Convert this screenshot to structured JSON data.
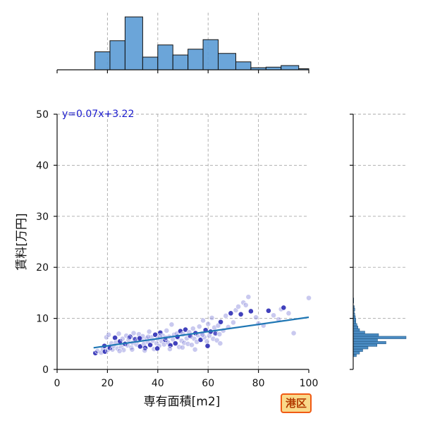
{
  "chart_data": {
    "type": "scatter",
    "xlabel": "専有面積[m2]",
    "ylabel": "賃料[万円]",
    "xlim": [
      0,
      100
    ],
    "ylim": [
      0,
      50
    ],
    "xticks": [
      0,
      20,
      40,
      60,
      80,
      100
    ],
    "yticks": [
      0,
      10,
      20,
      30,
      40,
      50
    ],
    "grid": true,
    "regression": {
      "label": "y=0.07x+3.22",
      "slope": 0.07,
      "intercept": 3.22,
      "x_range": [
        14.5,
        100
      ]
    },
    "top_histogram": {
      "bins": [
        {
          "x0": 15,
          "x1": 21,
          "height": 0.34
        },
        {
          "x0": 21,
          "x1": 27,
          "height": 0.55
        },
        {
          "x0": 27,
          "x1": 34,
          "height": 1.0
        },
        {
          "x0": 34,
          "x1": 40,
          "height": 0.24
        },
        {
          "x0": 40,
          "x1": 46,
          "height": 0.47
        },
        {
          "x0": 46,
          "x1": 52,
          "height": 0.28
        },
        {
          "x0": 52,
          "x1": 58,
          "height": 0.39
        },
        {
          "x0": 58,
          "x1": 64,
          "height": 0.57
        },
        {
          "x0": 64,
          "x1": 71,
          "height": 0.31
        },
        {
          "x0": 71,
          "x1": 77,
          "height": 0.15
        },
        {
          "x0": 77,
          "x1": 83,
          "height": 0.04
        },
        {
          "x0": 83,
          "x1": 89,
          "height": 0.05
        },
        {
          "x0": 89,
          "x1": 96,
          "height": 0.08
        },
        {
          "x0": 96,
          "x1": 100,
          "height": 0.02
        }
      ]
    },
    "right_histogram": {
      "bins": [
        {
          "y0": 2.5,
          "y1": 3.0,
          "width": 0.06
        },
        {
          "y0": 3.0,
          "y1": 3.5,
          "width": 0.12
        },
        {
          "y0": 3.5,
          "y1": 4.0,
          "width": 0.18
        },
        {
          "y0": 4.0,
          "y1": 4.5,
          "width": 0.28
        },
        {
          "y0": 4.5,
          "y1": 5.0,
          "width": 0.45
        },
        {
          "y0": 5.0,
          "y1": 5.5,
          "width": 0.62
        },
        {
          "y0": 5.5,
          "y1": 6.0,
          "width": 0.46
        },
        {
          "y0": 6.0,
          "y1": 6.5,
          "width": 1.0
        },
        {
          "y0": 6.5,
          "y1": 7.0,
          "width": 0.48
        },
        {
          "y0": 7.0,
          "y1": 7.5,
          "width": 0.22
        },
        {
          "y0": 7.5,
          "y1": 8.0,
          "width": 0.12
        },
        {
          "y0": 8.0,
          "y1": 8.5,
          "width": 0.09
        },
        {
          "y0": 8.5,
          "y1": 9.0,
          "width": 0.07
        },
        {
          "y0": 9.0,
          "y1": 9.5,
          "width": 0.05
        },
        {
          "y0": 9.5,
          "y1": 10.0,
          "width": 0.05
        },
        {
          "y0": 10.0,
          "y1": 10.5,
          "width": 0.04
        },
        {
          "y0": 10.5,
          "y1": 11.0,
          "width": 0.03
        },
        {
          "y0": 11.0,
          "y1": 11.5,
          "width": 0.02
        },
        {
          "y0": 11.5,
          "y1": 12.0,
          "width": 0.03
        },
        {
          "y0": 12.0,
          "y1": 12.5,
          "width": 0.02
        },
        {
          "y0": 13.0,
          "y1": 13.5,
          "width": 0.01
        },
        {
          "y0": 13.5,
          "y1": 14.0,
          "width": 0.01
        }
      ]
    },
    "points": [
      [
        15.2,
        3.2
      ],
      [
        16.0,
        3.6
      ],
      [
        17.5,
        3.3
      ],
      [
        18.2,
        4.0
      ],
      [
        19.0,
        3.5
      ],
      [
        19.6,
        6.3
      ],
      [
        20.1,
        3.8
      ],
      [
        20.5,
        6.8
      ],
      [
        21.0,
        4.2
      ],
      [
        21.6,
        5.1
      ],
      [
        22.0,
        3.9
      ],
      [
        22.5,
        4.6
      ],
      [
        23.0,
        6.2
      ],
      [
        23.4,
        5.3
      ],
      [
        24.0,
        4.1
      ],
      [
        24.5,
        7.0
      ],
      [
        25.0,
        5.5
      ],
      [
        25.5,
        4.4
      ],
      [
        26.0,
        6.0
      ],
      [
        26.4,
        3.8
      ],
      [
        27.0,
        5.0
      ],
      [
        27.5,
        6.6
      ],
      [
        28.0,
        4.7
      ],
      [
        28.4,
        5.8
      ],
      [
        29.0,
        6.4
      ],
      [
        29.5,
        4.3
      ],
      [
        30.0,
        5.2
      ],
      [
        30.4,
        7.1
      ],
      [
        31.0,
        6.0
      ],
      [
        31.5,
        4.9
      ],
      [
        32.0,
        5.6
      ],
      [
        32.5,
        6.9
      ],
      [
        33.0,
        4.5
      ],
      [
        33.5,
        5.9
      ],
      [
        34.0,
        6.5
      ],
      [
        34.5,
        5.0
      ],
      [
        35.0,
        4.2
      ],
      [
        35.5,
        6.1
      ],
      [
        36.0,
        5.4
      ],
      [
        36.6,
        7.4
      ],
      [
        37.0,
        4.8
      ],
      [
        37.5,
        6.3
      ],
      [
        38.0,
        5.6
      ],
      [
        38.5,
        4.0
      ],
      [
        39.0,
        6.8
      ],
      [
        39.5,
        5.1
      ],
      [
        40.0,
        6.0
      ],
      [
        40.5,
        4.6
      ],
      [
        41.0,
        7.2
      ],
      [
        41.5,
        5.5
      ],
      [
        42.0,
        6.6
      ],
      [
        42.5,
        4.9
      ],
      [
        43.0,
        5.8
      ],
      [
        43.5,
        7.6
      ],
      [
        44.0,
        5.3
      ],
      [
        44.5,
        6.4
      ],
      [
        45.0,
        4.7
      ],
      [
        45.5,
        8.8
      ],
      [
        46.0,
        5.9
      ],
      [
        46.5,
        6.8
      ],
      [
        47.0,
        5.1
      ],
      [
        47.5,
        7.0
      ],
      [
        48.0,
        6.2
      ],
      [
        48.5,
        4.4
      ],
      [
        49.0,
        7.5
      ],
      [
        49.5,
        5.6
      ],
      [
        50.0,
        6.9
      ],
      [
        50.5,
        5.2
      ],
      [
        51.0,
        7.8
      ],
      [
        51.5,
        6.1
      ],
      [
        52.0,
        5.0
      ],
      [
        52.5,
        7.3
      ],
      [
        53.0,
        6.5
      ],
      [
        53.5,
        4.8
      ],
      [
        54.0,
        8.0
      ],
      [
        54.5,
        6.0
      ],
      [
        55.0,
        7.1
      ],
      [
        55.5,
        5.4
      ],
      [
        56.0,
        6.7
      ],
      [
        56.5,
        8.4
      ],
      [
        57.0,
        5.8
      ],
      [
        57.5,
        7.0
      ],
      [
        58.0,
        9.6
      ],
      [
        58.5,
        6.3
      ],
      [
        59.0,
        7.7
      ],
      [
        59.5,
        5.5
      ],
      [
        60.0,
        8.9
      ],
      [
        60.5,
        6.6
      ],
      [
        61.0,
        7.4
      ],
      [
        61.5,
        10.1
      ],
      [
        62.0,
        6.0
      ],
      [
        62.5,
        8.2
      ],
      [
        63.0,
        7.1
      ],
      [
        63.5,
        5.7
      ],
      [
        64.0,
        8.6
      ],
      [
        64.5,
        6.9
      ],
      [
        65.0,
        9.3
      ],
      [
        66.0,
        7.6
      ],
      [
        67.0,
        10.5
      ],
      [
        68.0,
        8.3
      ],
      [
        69.0,
        11.0
      ],
      [
        70.0,
        9.2
      ],
      [
        71.0,
        11.6
      ],
      [
        72.0,
        12.3
      ],
      [
        73.0,
        10.8
      ],
      [
        74.0,
        13.1
      ],
      [
        75.0,
        12.6
      ],
      [
        76.0,
        14.2
      ],
      [
        77.0,
        11.4
      ],
      [
        79.0,
        10.2
      ],
      [
        80.0,
        9.0
      ],
      [
        82.0,
        8.6
      ],
      [
        84.0,
        11.5
      ],
      [
        86.0,
        10.6
      ],
      [
        88.0,
        9.8
      ],
      [
        89.0,
        11.8
      ],
      [
        90.0,
        12.1
      ],
      [
        92.0,
        11.0
      ],
      [
        94.0,
        7.1
      ],
      [
        100.0,
        14.0
      ],
      [
        18.8,
        4.6
      ],
      [
        24.8,
        3.6
      ],
      [
        29.8,
        3.9
      ],
      [
        34.8,
        3.7
      ],
      [
        39.8,
        4.1
      ],
      [
        44.8,
        4.0
      ],
      [
        49.8,
        4.3
      ],
      [
        54.8,
        3.9
      ],
      [
        59.8,
        4.6
      ],
      [
        64.8,
        5.1
      ],
      [
        28.6,
        6.2
      ],
      [
        30.9,
        5.9
      ],
      [
        32.8,
        6.1
      ],
      [
        36.2,
        6.4
      ],
      [
        40.8,
        6.5
      ],
      [
        43.2,
        6.2
      ],
      [
        47.8,
        6.4
      ],
      [
        52.6,
        6.6
      ],
      [
        57.8,
        6.8
      ],
      [
        62.8,
        7.0
      ]
    ]
  },
  "badge": {
    "label": "港区"
  }
}
